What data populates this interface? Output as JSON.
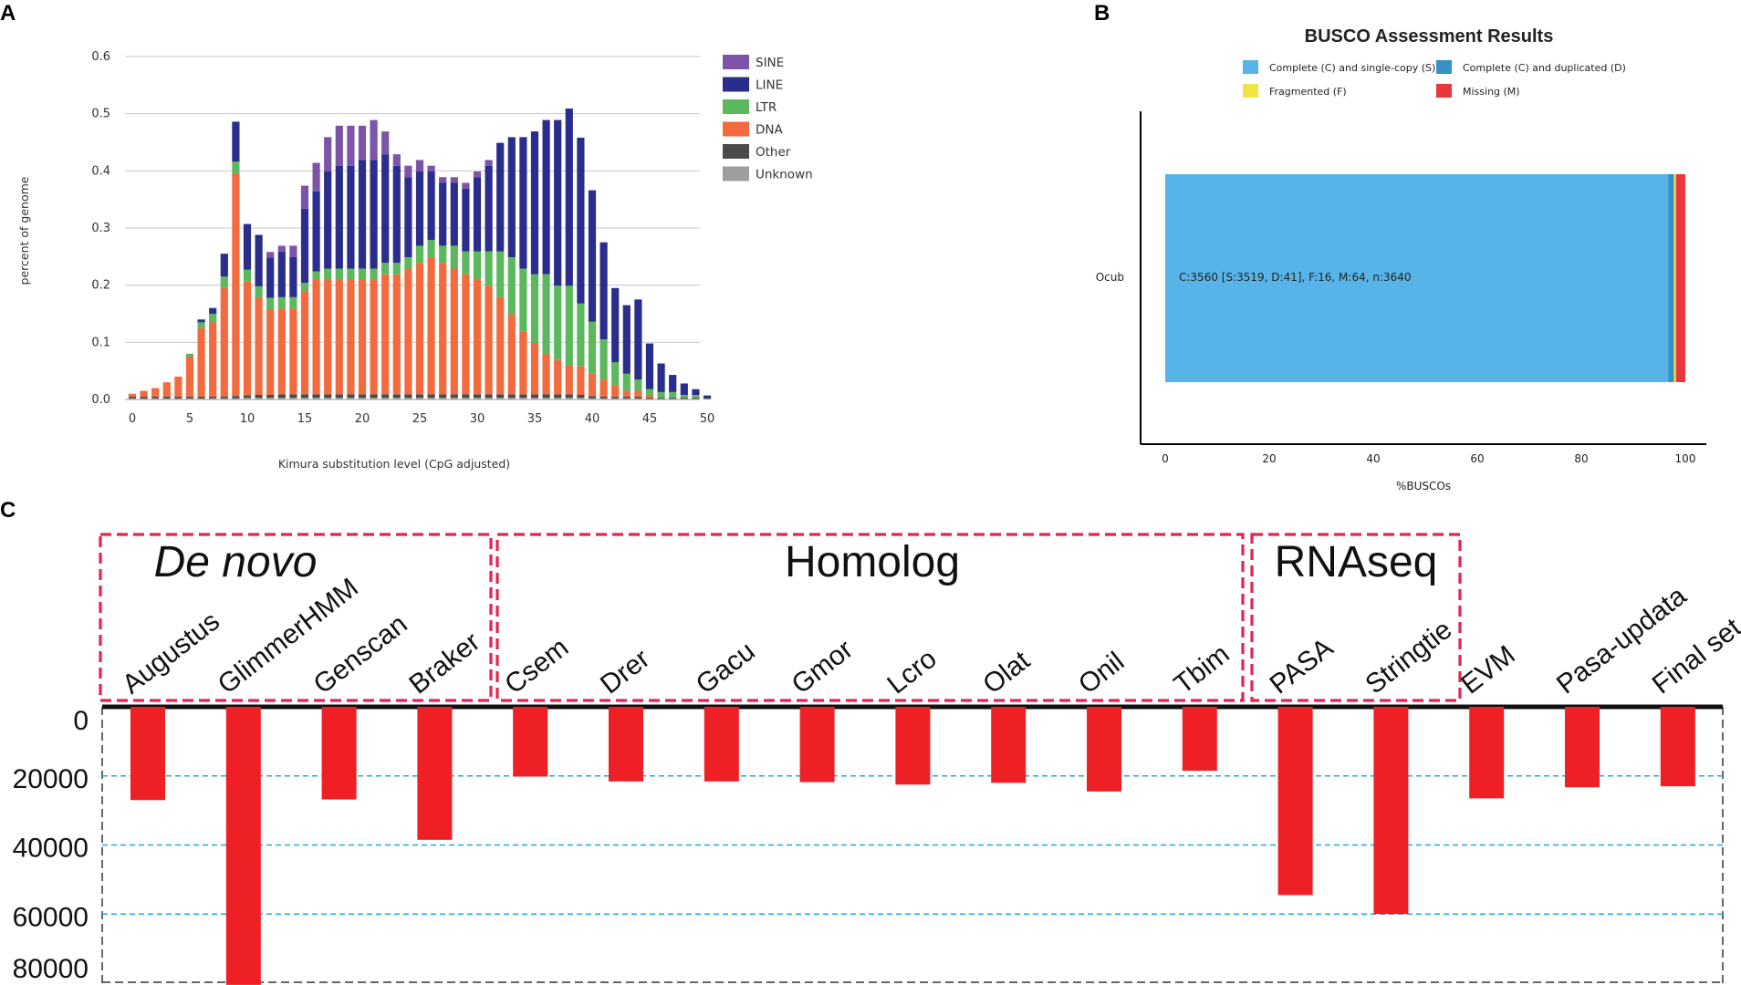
{
  "panels": {
    "a": "A",
    "b": "B",
    "c": "C"
  },
  "chart_data": [
    {
      "id": "A",
      "type": "bar",
      "stacked": true,
      "title": "",
      "xlabel": "Kimura substitution level (CpG adjusted)",
      "ylabel": "percent of genome",
      "xlim": [
        0,
        50
      ],
      "ylim": [
        0,
        0.6
      ],
      "xticks": [
        "0",
        "5",
        "10",
        "15",
        "20",
        "25",
        "30",
        "35",
        "40",
        "45",
        "50"
      ],
      "yticks": [
        "0.0",
        "0.1",
        "0.2",
        "0.3",
        "0.4",
        "0.5",
        "0.6"
      ],
      "grid": true,
      "legend": "top-right",
      "x": [
        0,
        1,
        2,
        3,
        4,
        5,
        6,
        7,
        8,
        9,
        10,
        11,
        12,
        13,
        14,
        15,
        16,
        17,
        18,
        19,
        20,
        21,
        22,
        23,
        24,
        25,
        26,
        27,
        28,
        29,
        30,
        31,
        32,
        33,
        34,
        35,
        36,
        37,
        38,
        39,
        40,
        41,
        42,
        43,
        44,
        45,
        46,
        47,
        48,
        49,
        50
      ],
      "series": [
        {
          "name": "SINE",
          "color": "#7d55a8",
          "values": [
            0,
            0,
            0,
            0,
            0,
            0,
            0,
            0,
            0,
            0,
            0,
            0,
            0.01,
            0.01,
            0.02,
            0.04,
            0.05,
            0.06,
            0.07,
            0.07,
            0.06,
            0.07,
            0.04,
            0.02,
            0.02,
            0.02,
            0.01,
            0.01,
            0.01,
            0.01,
            0.01,
            0.01,
            0,
            0,
            0,
            0,
            0,
            0,
            0,
            0,
            0,
            0,
            0,
            0,
            0,
            0,
            0,
            0,
            0,
            0,
            0
          ]
        },
        {
          "name": "LINE",
          "color": "#2b2d8c",
          "values": [
            0,
            0,
            0,
            0,
            0,
            0,
            0.005,
            0.01,
            0.04,
            0.07,
            0.08,
            0.09,
            0.07,
            0.08,
            0.07,
            0.13,
            0.14,
            0.17,
            0.18,
            0.18,
            0.19,
            0.19,
            0.19,
            0.17,
            0.14,
            0.13,
            0.12,
            0.11,
            0.11,
            0.11,
            0.13,
            0.15,
            0.19,
            0.21,
            0.23,
            0.25,
            0.27,
            0.29,
            0.31,
            0.29,
            0.23,
            0.17,
            0.13,
            0.12,
            0.14,
            0.08,
            0.05,
            0.03,
            0.02,
            0.01,
            0.005
          ]
        },
        {
          "name": "LTR",
          "color": "#5cb85c",
          "values": [
            0,
            0,
            0,
            0,
            0,
            0.005,
            0.01,
            0.015,
            0.02,
            0.02,
            0.02,
            0.02,
            0.02,
            0.02,
            0.02,
            0.015,
            0.015,
            0.02,
            0.02,
            0.02,
            0.02,
            0.02,
            0.02,
            0.02,
            0.02,
            0.03,
            0.03,
            0.03,
            0.04,
            0.04,
            0.05,
            0.06,
            0.08,
            0.1,
            0.11,
            0.12,
            0.14,
            0.13,
            0.14,
            0.11,
            0.09,
            0.07,
            0.04,
            0.03,
            0.02,
            0.01,
            0.01,
            0.01,
            0.005,
            0.005,
            0
          ]
        },
        {
          "name": "DNA",
          "color": "#f26a3e",
          "values": [
            0.005,
            0.01,
            0.015,
            0.025,
            0.035,
            0.07,
            0.12,
            0.13,
            0.19,
            0.39,
            0.2,
            0.17,
            0.15,
            0.15,
            0.15,
            0.18,
            0.2,
            0.2,
            0.2,
            0.2,
            0.2,
            0.2,
            0.21,
            0.21,
            0.22,
            0.23,
            0.24,
            0.23,
            0.22,
            0.21,
            0.2,
            0.19,
            0.17,
            0.14,
            0.11,
            0.09,
            0.07,
            0.06,
            0.05,
            0.05,
            0.04,
            0.03,
            0.02,
            0.01,
            0.01,
            0.005,
            0,
            0,
            0,
            0,
            0
          ]
        },
        {
          "name": "Other",
          "color": "#4a4a4a",
          "values": [
            0.003,
            0.003,
            0.003,
            0.003,
            0.003,
            0.003,
            0.003,
            0.003,
            0.003,
            0.004,
            0.004,
            0.005,
            0.005,
            0.006,
            0.006,
            0.006,
            0.006,
            0.006,
            0.006,
            0.006,
            0.006,
            0.006,
            0.006,
            0.006,
            0.006,
            0.006,
            0.006,
            0.006,
            0.006,
            0.006,
            0.006,
            0.006,
            0.006,
            0.006,
            0.006,
            0.006,
            0.006,
            0.006,
            0.006,
            0.005,
            0.004,
            0.003,
            0.003,
            0.003,
            0.003,
            0.002,
            0.002,
            0.002,
            0.002,
            0.002,
            0.001
          ]
        },
        {
          "name": "Unknown",
          "color": "#9e9e9e",
          "values": [
            0.002,
            0.002,
            0.002,
            0.002,
            0.002,
            0.002,
            0.002,
            0.002,
            0.002,
            0.002,
            0.003,
            0.003,
            0.003,
            0.003,
            0.003,
            0.003,
            0.003,
            0.003,
            0.003,
            0.003,
            0.003,
            0.003,
            0.003,
            0.003,
            0.003,
            0.003,
            0.003,
            0.003,
            0.003,
            0.003,
            0.003,
            0.003,
            0.003,
            0.003,
            0.003,
            0.003,
            0.003,
            0.003,
            0.003,
            0.003,
            0.002,
            0.002,
            0.002,
            0.002,
            0.002,
            0.001,
            0.001,
            0.001,
            0.001,
            0.001,
            0.001
          ]
        }
      ]
    },
    {
      "id": "B",
      "type": "bar",
      "orientation": "horizontal",
      "stacked": true,
      "title": "BUSCO Assessment Results",
      "xlabel": "%BUSCOs",
      "ylabel": "",
      "xlim": [
        0,
        100
      ],
      "xticks": [
        "0",
        "20",
        "40",
        "60",
        "80",
        "100"
      ],
      "categories": [
        "Ocub"
      ],
      "annotation": "C:3560 [S:3519, D:41], F:16, M:64, n:3640",
      "legend": "top",
      "series": [
        {
          "name": "Complete (C) and single-copy (S)",
          "color": "#56b4e9",
          "values": [
            96.7
          ]
        },
        {
          "name": "Complete (C) and duplicated (D)",
          "color": "#3492c7",
          "values": [
            1.1
          ]
        },
        {
          "name": "Fragmented (F)",
          "color": "#f0e442",
          "values": [
            0.4
          ]
        },
        {
          "name": "Missing (M)",
          "color": "#e8383b",
          "values": [
            1.8
          ]
        }
      ]
    },
    {
      "id": "C",
      "type": "bar",
      "orientation": "inverted",
      "title": "",
      "xlabel": "",
      "ylabel": "",
      "ylim": [
        0,
        80000
      ],
      "yticks": [
        "0",
        "20000",
        "40000",
        "60000",
        "80000"
      ],
      "groups": [
        {
          "label": "De novo",
          "italic": true,
          "members": [
            "Augustus",
            "GlimmerHMM",
            "Genscan",
            "Braker"
          ]
        },
        {
          "label": "Homolog",
          "italic": false,
          "members": [
            "Csem",
            "Drer",
            "Gacu",
            "Gmor",
            "Lcro",
            "Olat",
            "Onil",
            "Tbim"
          ]
        },
        {
          "label": "RNAseq",
          "italic": false,
          "members": [
            "PASA",
            "Stringtie"
          ]
        }
      ],
      "categories": [
        "Augustus",
        "GlimmerHMM",
        "Genscan",
        "Braker",
        "Csem",
        "Drer",
        "Gacu",
        "Gmor",
        "Lcro",
        "Olat",
        "Onil",
        "Tbim",
        "PASA",
        "Stringtie",
        "EVM",
        "Pasa-updata",
        "Final set"
      ],
      "values": [
        27000,
        80500,
        26800,
        38500,
        20200,
        21600,
        21600,
        21800,
        22500,
        22000,
        24500,
        18500,
        54500,
        60000,
        26500,
        23300,
        23000
      ],
      "bar_color": "#ee2026"
    }
  ]
}
